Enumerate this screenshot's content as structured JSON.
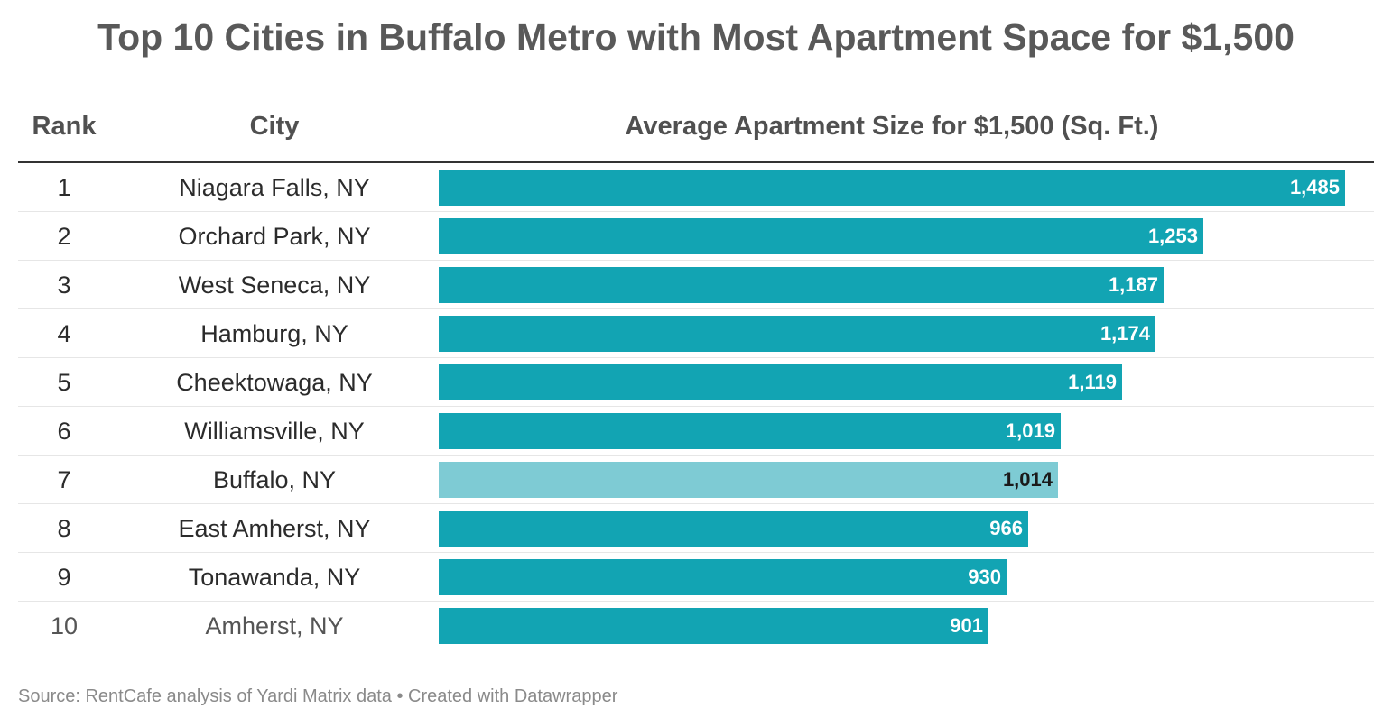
{
  "title": "Top 10 Cities in Buffalo Metro with Most Apartment Space for $1,500",
  "headers": {
    "rank": "Rank",
    "city": "City",
    "value": "Average Apartment Size for $1,500 (Sq. Ft.)"
  },
  "source": "Source: RentCafe analysis of Yardi Matrix data • Created with Datawrapper",
  "colors": {
    "bar": "#12a4b3",
    "highlight_bar": "#7ecbd4"
  },
  "chart_data": {
    "type": "bar",
    "orientation": "horizontal",
    "title": "Top 10 Cities in Buffalo Metro with Most Apartment Space for $1,500",
    "xlabel": "Average Apartment Size for $1,500 (Sq. Ft.)",
    "ylabel": "City",
    "xlim": [
      0,
      1485
    ],
    "grid": false,
    "rows": [
      {
        "rank": "1",
        "city": "Niagara Falls, NY",
        "value": 1485,
        "label": "1,485",
        "highlight": false
      },
      {
        "rank": "2",
        "city": "Orchard Park, NY",
        "value": 1253,
        "label": "1,253",
        "highlight": false
      },
      {
        "rank": "3",
        "city": "West Seneca, NY",
        "value": 1187,
        "label": "1,187",
        "highlight": false
      },
      {
        "rank": "4",
        "city": "Hamburg, NY",
        "value": 1174,
        "label": "1,174",
        "highlight": false
      },
      {
        "rank": "5",
        "city": "Cheektowaga, NY",
        "value": 1119,
        "label": "1,119",
        "highlight": false
      },
      {
        "rank": "6",
        "city": "Williamsville, NY",
        "value": 1019,
        "label": "1,019",
        "highlight": false
      },
      {
        "rank": "7",
        "city": "Buffalo, NY",
        "value": 1014,
        "label": "1,014",
        "highlight": true
      },
      {
        "rank": "8",
        "city": "East Amherst, NY",
        "value": 966,
        "label": "966",
        "highlight": false
      },
      {
        "rank": "9",
        "city": "Tonawanda, NY",
        "value": 930,
        "label": "930",
        "highlight": false
      },
      {
        "rank": "10",
        "city": "Amherst, NY",
        "value": 901,
        "label": "901",
        "highlight": false
      }
    ]
  }
}
